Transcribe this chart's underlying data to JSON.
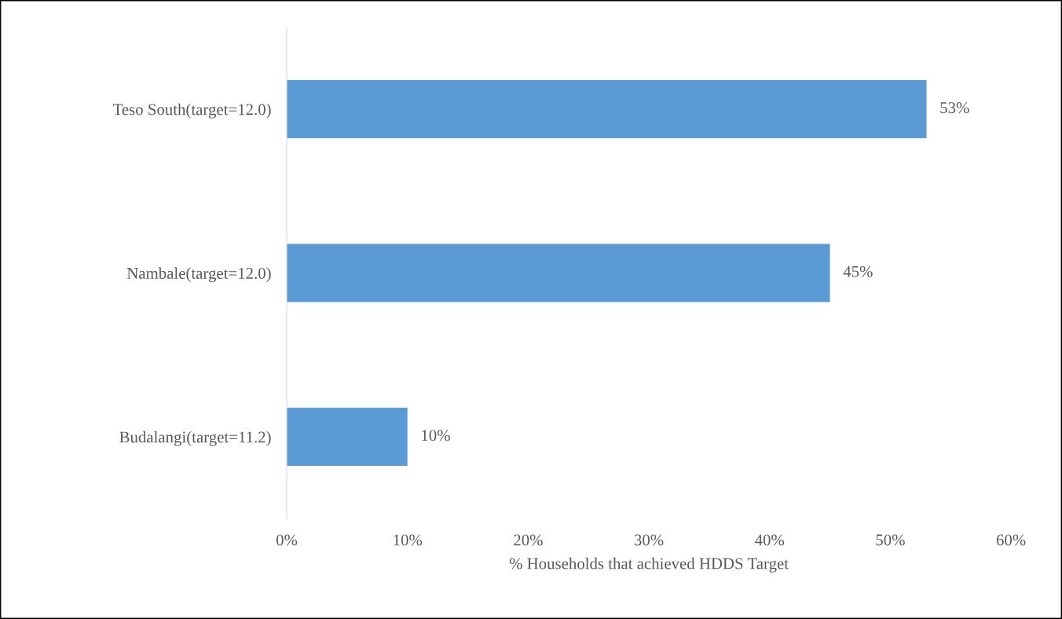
{
  "chart_data": {
    "type": "bar",
    "orientation": "horizontal",
    "xlabel": "% Households that achieved HDDS Target",
    "categories": [
      "Teso South(target=12.0)",
      "Nambale(target=12.0)",
      "Budalangi(target=11.2)"
    ],
    "values": [
      53,
      45,
      10
    ],
    "color": "#5b9bd5",
    "value_labels": [
      "53%",
      "45%",
      "10%"
    ],
    "xlim": [
      0,
      60
    ],
    "xticks": [
      {
        "value": 0,
        "label": "0%"
      },
      {
        "value": 10,
        "label": "10%"
      },
      {
        "value": 20,
        "label": "20%"
      },
      {
        "value": 30,
        "label": "30%"
      },
      {
        "value": 40,
        "label": "40%"
      },
      {
        "value": 50,
        "label": "50%"
      },
      {
        "value": 60,
        "label": "60%"
      }
    ],
    "grid": false,
    "legend": false
  }
}
